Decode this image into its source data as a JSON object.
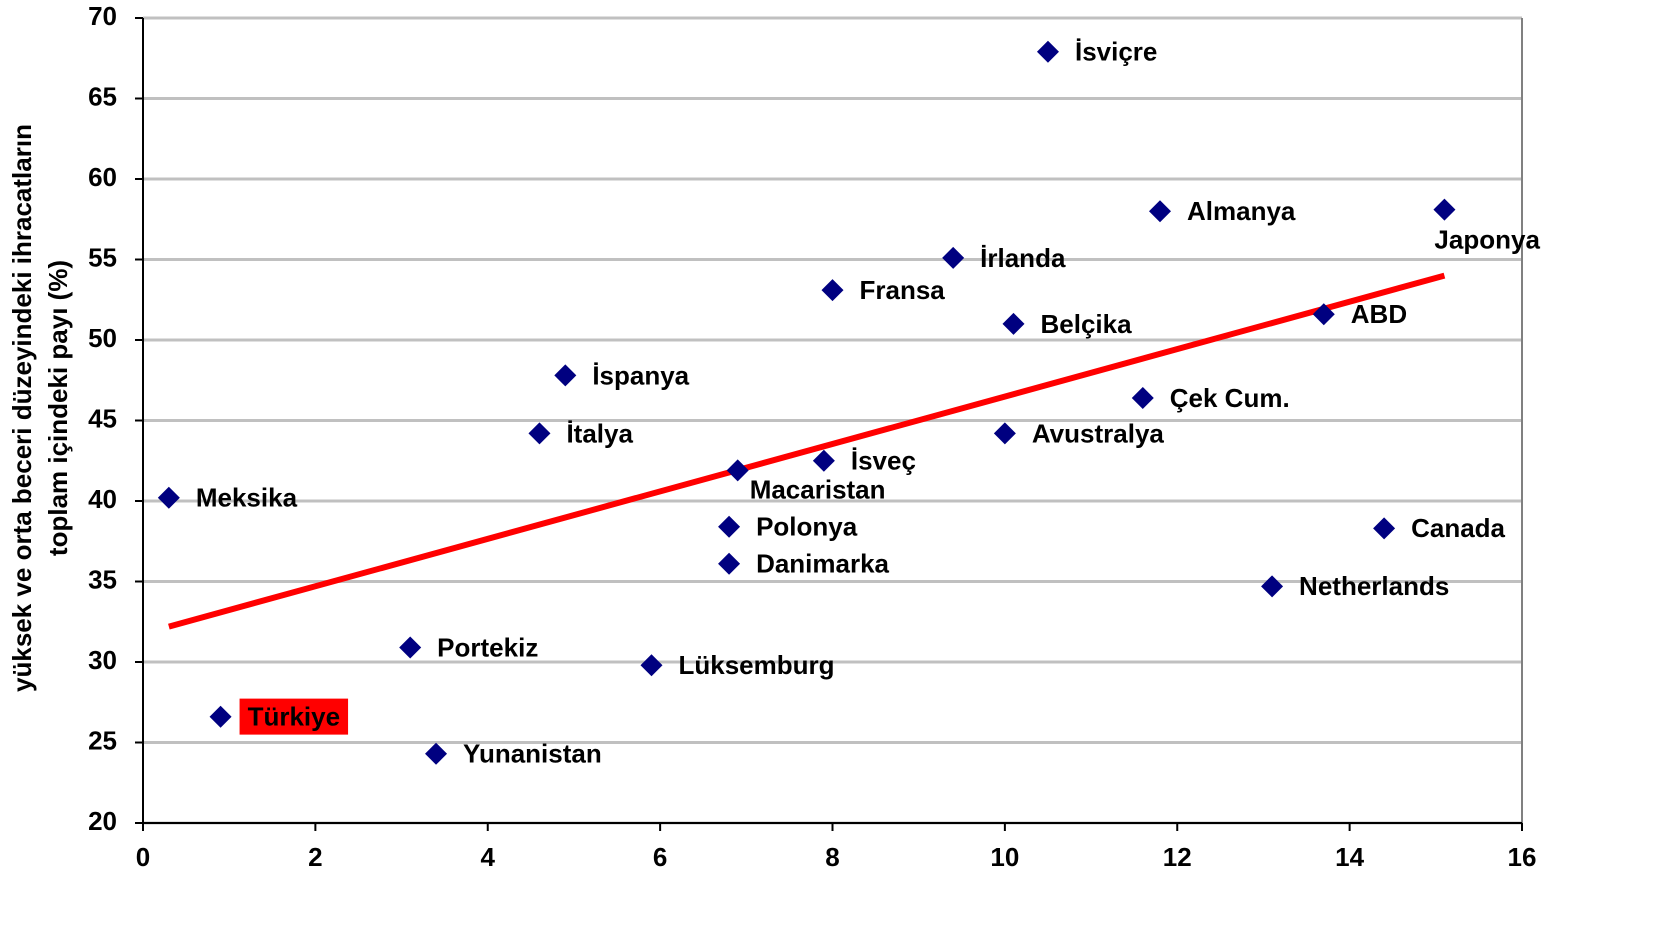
{
  "chart_data": {
    "type": "scatter",
    "ylabel": [
      "yüksek ve orta beceri düzeyindeki ihracatların",
      "toplam içindeki payı (%)"
    ],
    "xlim": [
      0,
      16
    ],
    "xticks": [
      0,
      2,
      4,
      6,
      8,
      10,
      12,
      14,
      16
    ],
    "ylim": [
      20,
      70
    ],
    "yticks": [
      20,
      25,
      30,
      35,
      40,
      45,
      50,
      55,
      60,
      65,
      70
    ],
    "grid": true,
    "color": "#000080",
    "points": [
      {
        "label": "Meksika",
        "x": 0.3,
        "y": 40.2
      },
      {
        "label": "Türkiye",
        "x": 0.9,
        "y": 26.6,
        "label_background": "#ff0000"
      },
      {
        "label": "Portekiz",
        "x": 3.1,
        "y": 30.9
      },
      {
        "label": "Yunanistan",
        "x": 3.4,
        "y": 24.3
      },
      {
        "label": "İtalya",
        "x": 4.6,
        "y": 44.2
      },
      {
        "label": "İspanya",
        "x": 4.9,
        "y": 47.8
      },
      {
        "label": "Lüksemburg",
        "x": 5.9,
        "y": 29.8
      },
      {
        "label": "Macaristan",
        "x": 6.9,
        "y": 41.9
      },
      {
        "label": "Polonya",
        "x": 6.8,
        "y": 38.4
      },
      {
        "label": "Danimarka",
        "x": 6.8,
        "y": 36.1
      },
      {
        "label": "İsveç",
        "x": 7.9,
        "y": 42.5
      },
      {
        "label": "Fransa",
        "x": 8.0,
        "y": 53.1
      },
      {
        "label": "İrlanda",
        "x": 9.4,
        "y": 55.1
      },
      {
        "label": "Belçika",
        "x": 10.1,
        "y": 51.0
      },
      {
        "label": "Avustralya",
        "x": 10.0,
        "y": 44.2
      },
      {
        "label": "İsviçre",
        "x": 10.5,
        "y": 67.9
      },
      {
        "label": "Almanya",
        "x": 11.8,
        "y": 58.0
      },
      {
        "label": "Çek Cum.",
        "x": 11.6,
        "y": 46.4
      },
      {
        "label": "Netherlands",
        "x": 13.1,
        "y": 34.7
      },
      {
        "label": "ABD",
        "x": 13.7,
        "y": 51.6
      },
      {
        "label": "Canada",
        "x": 14.4,
        "y": 38.3
      },
      {
        "label": "Japonya",
        "x": 15.1,
        "y": 58.1
      }
    ],
    "trendline": {
      "x": [
        0.3,
        15.1
      ],
      "y": [
        32.2,
        54.0
      ],
      "color": "#ff0000"
    }
  }
}
